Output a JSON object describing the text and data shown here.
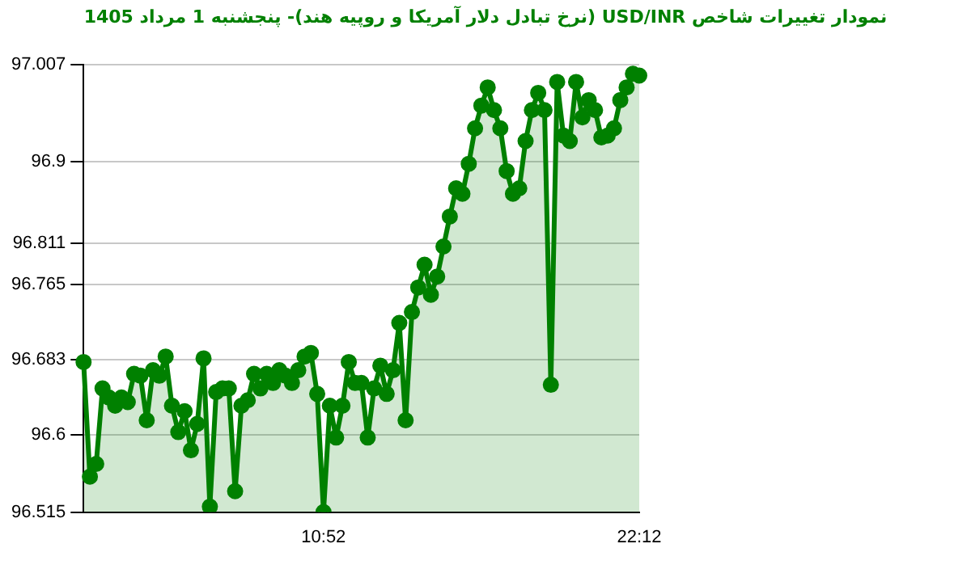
{
  "chart_data": {
    "type": "area",
    "title": "نمودار تغییرات شاخص USD/INR (نرخ تبادل دلار آمریکا و روپیه هند)- پنجشنبه  1 مرداد 1405",
    "categories": [
      null,
      null,
      null,
      null,
      null,
      null,
      null,
      null,
      null,
      null,
      null,
      null,
      null,
      null,
      null,
      null,
      null,
      null,
      null,
      null,
      null,
      null,
      null,
      null,
      null,
      null,
      null,
      null,
      null,
      null,
      null,
      null,
      null,
      null,
      null,
      null,
      null,
      null,
      "10:52",
      null,
      null,
      null,
      null,
      null,
      null,
      null,
      null,
      null,
      null,
      null,
      null,
      null,
      null,
      null,
      null,
      null,
      null,
      null,
      null,
      null,
      null,
      null,
      null,
      null,
      null,
      null,
      null,
      null,
      null,
      null,
      null,
      null,
      null,
      null,
      null,
      null,
      null,
      null,
      null,
      null,
      null,
      null,
      null,
      null,
      null,
      null,
      null,
      null,
      "22:12"
    ],
    "series": [
      {
        "color": "#008000",
        "values": [
          96.68,
          96.554,
          96.568,
          96.651,
          96.641,
          96.632,
          96.641,
          96.636,
          96.667,
          96.665,
          96.616,
          96.671,
          96.665,
          96.686,
          96.632,
          96.603,
          96.626,
          96.583,
          96.612,
          96.684,
          96.521,
          96.647,
          96.651,
          96.651,
          96.538,
          96.632,
          96.638,
          96.667,
          96.651,
          96.667,
          96.657,
          96.671,
          96.665,
          96.657,
          96.671,
          96.686,
          96.69,
          96.645,
          96.515,
          96.632,
          96.597,
          96.632,
          96.68,
          96.657,
          96.657,
          96.597,
          96.651,
          96.676,
          96.645,
          96.671,
          96.723,
          96.616,
          96.735,
          96.762,
          96.787,
          96.754,
          96.774,
          96.807,
          96.84,
          96.871,
          96.865,
          96.898,
          96.937,
          96.962,
          96.982,
          96.957,
          96.937,
          96.89,
          96.865,
          96.871,
          96.923,
          96.957,
          96.976,
          96.957,
          96.655,
          96.988,
          96.929,
          96.923,
          96.988,
          96.949,
          96.968,
          96.957,
          96.927,
          96.929,
          96.937,
          96.968,
          96.982,
          96.997,
          96.995
        ]
      }
    ],
    "ylim": [
      96.515,
      97.007
    ],
    "yticks": [
      96.515,
      96.6,
      96.683,
      96.765,
      96.811,
      96.9,
      97.007
    ],
    "grid": "y",
    "marker": "circle",
    "line_style": "solid"
  }
}
